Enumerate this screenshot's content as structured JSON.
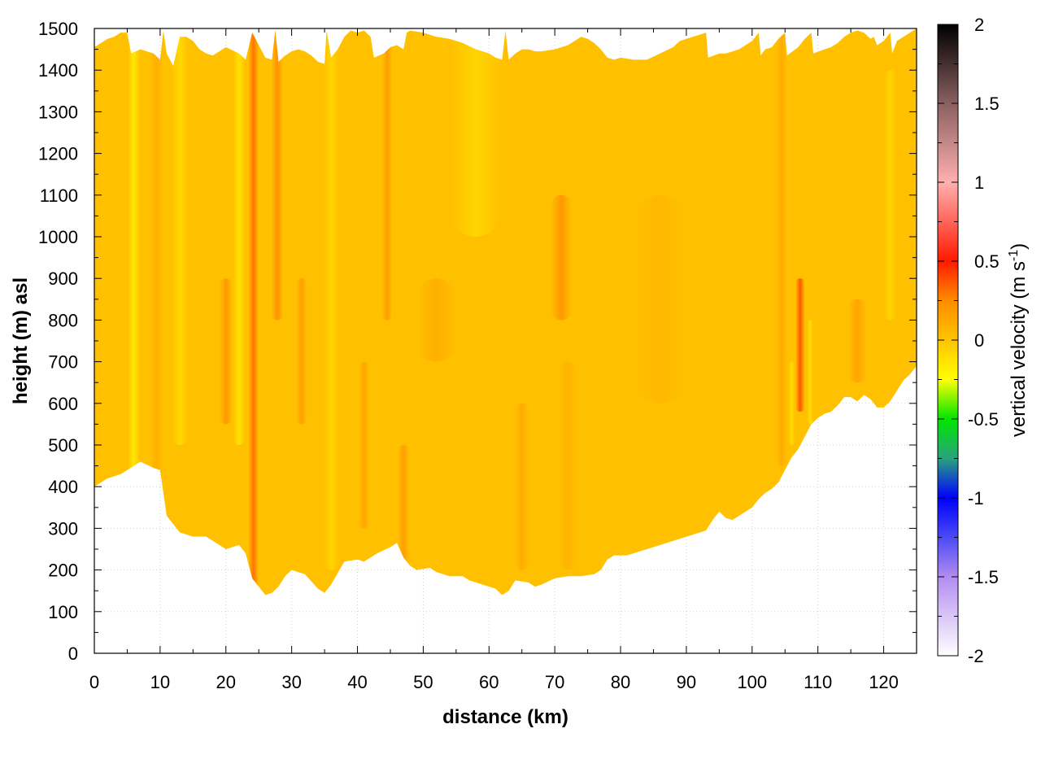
{
  "chart_data": {
    "type": "heatmap",
    "xlabel": "distance (km)",
    "ylabel": "height (m) asl",
    "xlim": [
      0,
      125
    ],
    "ylim": [
      0,
      1500
    ],
    "xticks": [
      "0",
      "10",
      "20",
      "30",
      "40",
      "50",
      "60",
      "70",
      "80",
      "90",
      "100",
      "110",
      "120"
    ],
    "yticks": [
      "0",
      "100",
      "200",
      "300",
      "400",
      "500",
      "600",
      "700",
      "800",
      "900",
      "1000",
      "1100",
      "1200",
      "1300",
      "1400",
      "1500"
    ],
    "grid": true,
    "colorbar": {
      "label_main": "vertical velocity (m s",
      "label_sup": "-1",
      "label_end": ")",
      "range": [
        -2,
        2
      ],
      "ticks": [
        "-2",
        "-1.5",
        "-1",
        "-0.5",
        "0",
        "0.5",
        "1",
        "1.5",
        "2"
      ],
      "palette": [
        {
          "v": -2.0,
          "color": "#ffffff"
        },
        {
          "v": -1.5,
          "color": "#b28cf0"
        },
        {
          "v": -1.25,
          "color": "#4a4af5"
        },
        {
          "v": -1.0,
          "color": "#0000ff"
        },
        {
          "v": -0.75,
          "color": "#2aa27e"
        },
        {
          "v": -0.5,
          "color": "#00e600"
        },
        {
          "v": -0.25,
          "color": "#ffff00"
        },
        {
          "v": 0.0,
          "color": "#ffc400"
        },
        {
          "v": 0.25,
          "color": "#ff8c00"
        },
        {
          "v": 0.5,
          "color": "#ff1a00"
        },
        {
          "v": 1.0,
          "color": "#ffb0b0"
        },
        {
          "v": 1.5,
          "color": "#8a6060"
        },
        {
          "v": 2.0,
          "color": "#000000"
        }
      ]
    },
    "base_value": 0.02,
    "bottom_boundary": [
      [
        0,
        400
      ],
      [
        2,
        420
      ],
      [
        4,
        430
      ],
      [
        5,
        440
      ],
      [
        7,
        460
      ],
      [
        9,
        445
      ],
      [
        10,
        440
      ],
      [
        11,
        330
      ],
      [
        13,
        290
      ],
      [
        15,
        280
      ],
      [
        17,
        280
      ],
      [
        19,
        260
      ],
      [
        20,
        250
      ],
      [
        22,
        260
      ],
      [
        23,
        240
      ],
      [
        24,
        180
      ],
      [
        25,
        160
      ],
      [
        26,
        140
      ],
      [
        27,
        145
      ],
      [
        28,
        160
      ],
      [
        29,
        185
      ],
      [
        30,
        200
      ],
      [
        32,
        190
      ],
      [
        34,
        155
      ],
      [
        35,
        145
      ],
      [
        36,
        165
      ],
      [
        38,
        220
      ],
      [
        40,
        225
      ],
      [
        41,
        220
      ],
      [
        43,
        240
      ],
      [
        45,
        255
      ],
      [
        46,
        265
      ],
      [
        47,
        230
      ],
      [
        48,
        210
      ],
      [
        49,
        200
      ],
      [
        51,
        205
      ],
      [
        52,
        195
      ],
      [
        54,
        185
      ],
      [
        56,
        185
      ],
      [
        57,
        175
      ],
      [
        59,
        165
      ],
      [
        61,
        155
      ],
      [
        62,
        140
      ],
      [
        63,
        150
      ],
      [
        64,
        175
      ],
      [
        66,
        170
      ],
      [
        67,
        160
      ],
      [
        68,
        165
      ],
      [
        70,
        180
      ],
      [
        72,
        185
      ],
      [
        74,
        185
      ],
      [
        76,
        190
      ],
      [
        77,
        200
      ],
      [
        78,
        225
      ],
      [
        79,
        235
      ],
      [
        81,
        235
      ],
      [
        83,
        245
      ],
      [
        85,
        255
      ],
      [
        87,
        265
      ],
      [
        89,
        275
      ],
      [
        91,
        285
      ],
      [
        93,
        295
      ],
      [
        94,
        320
      ],
      [
        95,
        340
      ],
      [
        96,
        325
      ],
      [
        97,
        320
      ],
      [
        98,
        330
      ],
      [
        100,
        350
      ],
      [
        101,
        370
      ],
      [
        102,
        385
      ],
      [
        103,
        395
      ],
      [
        104,
        410
      ],
      [
        105,
        440
      ],
      [
        106,
        470
      ],
      [
        107,
        490
      ],
      [
        108,
        520
      ],
      [
        109,
        550
      ],
      [
        110,
        565
      ],
      [
        111,
        575
      ],
      [
        112,
        580
      ],
      [
        113,
        595
      ],
      [
        114,
        615
      ],
      [
        115,
        615
      ],
      [
        116,
        605
      ],
      [
        117,
        620
      ],
      [
        118,
        610
      ],
      [
        119,
        590
      ],
      [
        120,
        590
      ],
      [
        121,
        605
      ],
      [
        122,
        630
      ],
      [
        123,
        655
      ],
      [
        124,
        670
      ],
      [
        125,
        690
      ]
    ],
    "top_boundary": [
      [
        0,
        1455
      ],
      [
        1,
        1465
      ],
      [
        2,
        1475
      ],
      [
        3,
        1480
      ],
      [
        4,
        1490
      ],
      [
        5,
        1490
      ],
      [
        5.6,
        1440
      ],
      [
        7,
        1450
      ],
      [
        8,
        1445
      ],
      [
        9,
        1440
      ],
      [
        10,
        1425
      ],
      [
        10.5,
        1495
      ],
      [
        11,
        1440
      ],
      [
        12,
        1410
      ],
      [
        13,
        1480
      ],
      [
        14,
        1480
      ],
      [
        15,
        1470
      ],
      [
        16,
        1450
      ],
      [
        17,
        1440
      ],
      [
        18,
        1435
      ],
      [
        19,
        1445
      ],
      [
        20,
        1455
      ],
      [
        22,
        1440
      ],
      [
        23,
        1425
      ],
      [
        24,
        1490
      ],
      [
        25,
        1460
      ],
      [
        26,
        1430
      ],
      [
        27,
        1425
      ],
      [
        27.5,
        1495
      ],
      [
        28,
        1420
      ],
      [
        29,
        1435
      ],
      [
        30,
        1445
      ],
      [
        31,
        1450
      ],
      [
        32,
        1445
      ],
      [
        33,
        1435
      ],
      [
        34,
        1420
      ],
      [
        35,
        1415
      ],
      [
        35.3,
        1495
      ],
      [
        36,
        1430
      ],
      [
        37,
        1450
      ],
      [
        38,
        1480
      ],
      [
        39,
        1495
      ],
      [
        40,
        1490
      ],
      [
        41,
        1495
      ],
      [
        42,
        1480
      ],
      [
        42.5,
        1430
      ],
      [
        44,
        1440
      ],
      [
        45,
        1455
      ],
      [
        46,
        1460
      ],
      [
        47,
        1450
      ],
      [
        47.5,
        1490
      ],
      [
        48,
        1495
      ],
      [
        50,
        1490
      ],
      [
        52,
        1480
      ],
      [
        54,
        1475
      ],
      [
        56,
        1465
      ],
      [
        58,
        1450
      ],
      [
        60,
        1440
      ],
      [
        61,
        1430
      ],
      [
        62,
        1425
      ],
      [
        62.5,
        1495
      ],
      [
        63,
        1425
      ],
      [
        64,
        1440
      ],
      [
        65,
        1450
      ],
      [
        66,
        1450
      ],
      [
        67,
        1445
      ],
      [
        68,
        1445
      ],
      [
        70,
        1450
      ],
      [
        72,
        1460
      ],
      [
        74,
        1480
      ],
      [
        75,
        1475
      ],
      [
        76,
        1465
      ],
      [
        77,
        1450
      ],
      [
        78,
        1430
      ],
      [
        79,
        1425
      ],
      [
        80,
        1430
      ],
      [
        82,
        1425
      ],
      [
        84,
        1425
      ],
      [
        86,
        1440
      ],
      [
        88,
        1455
      ],
      [
        89,
        1470
      ],
      [
        93,
        1490
      ],
      [
        93.3,
        1430
      ],
      [
        95,
        1440
      ],
      [
        96,
        1440
      ],
      [
        98,
        1450
      ],
      [
        100,
        1470
      ],
      [
        101,
        1490
      ],
      [
        101.3,
        1435
      ],
      [
        102,
        1450
      ],
      [
        103,
        1455
      ],
      [
        104,
        1475
      ],
      [
        105,
        1490
      ],
      [
        105.3,
        1435
      ],
      [
        107,
        1455
      ],
      [
        108,
        1475
      ],
      [
        109,
        1490
      ],
      [
        109.3,
        1440
      ],
      [
        111,
        1450
      ],
      [
        112,
        1455
      ],
      [
        113,
        1465
      ],
      [
        114,
        1480
      ],
      [
        115,
        1490
      ],
      [
        116,
        1495
      ],
      [
        117,
        1490
      ],
      [
        118,
        1475
      ],
      [
        118.5,
        1480
      ],
      [
        119,
        1460
      ],
      [
        120,
        1470
      ],
      [
        121,
        1490
      ],
      [
        121.3,
        1440
      ],
      [
        122,
        1470
      ],
      [
        123,
        1480
      ],
      [
        124,
        1490
      ],
      [
        125,
        1500
      ]
    ],
    "features": [
      {
        "x": 6.0,
        "hw": 0.9,
        "y0": 400,
        "y1": 1500,
        "v": -0.18
      },
      {
        "x": 9.5,
        "hw": 1.0,
        "y0": 300,
        "y1": 1500,
        "v": 0.1
      },
      {
        "x": 13.0,
        "hw": 1.3,
        "y0": 500,
        "y1": 1500,
        "v": -0.1
      },
      {
        "x": 20.0,
        "hw": 0.9,
        "y0": 550,
        "y1": 900,
        "v": 0.22
      },
      {
        "x": 22.0,
        "hw": 0.9,
        "y0": 500,
        "y1": 1500,
        "v": -0.15
      },
      {
        "x": 24.2,
        "hw": 0.8,
        "y0": 130,
        "y1": 1500,
        "v": 0.32
      },
      {
        "x": 27.8,
        "hw": 0.9,
        "y0": 800,
        "y1": 1500,
        "v": 0.25
      },
      {
        "x": 31.5,
        "hw": 0.8,
        "y0": 550,
        "y1": 900,
        "v": 0.18
      },
      {
        "x": 36.0,
        "hw": 1.2,
        "y0": 200,
        "y1": 1500,
        "v": -0.08
      },
      {
        "x": 41.0,
        "hw": 0.8,
        "y0": 300,
        "y1": 700,
        "v": 0.15
      },
      {
        "x": 44.5,
        "hw": 0.8,
        "y0": 800,
        "y1": 1500,
        "v": 0.2
      },
      {
        "x": 47.0,
        "hw": 0.9,
        "y0": 200,
        "y1": 500,
        "v": 0.18
      },
      {
        "x": 52.0,
        "hw": 3.0,
        "y0": 700,
        "y1": 900,
        "v": 0.1
      },
      {
        "x": 58.0,
        "hw": 4.0,
        "y0": 1000,
        "y1": 1500,
        "v": -0.08
      },
      {
        "x": 65.0,
        "hw": 1.0,
        "y0": 200,
        "y1": 600,
        "v": 0.12
      },
      {
        "x": 71.0,
        "hw": 1.6,
        "y0": 800,
        "y1": 1100,
        "v": 0.22
      },
      {
        "x": 72.0,
        "hw": 1.4,
        "y0": 200,
        "y1": 700,
        "v": 0.08
      },
      {
        "x": 86.0,
        "hw": 3.5,
        "y0": 600,
        "y1": 1100,
        "v": 0.06
      },
      {
        "x": 104.5,
        "hw": 0.8,
        "y0": 450,
        "y1": 1500,
        "v": 0.12
      },
      {
        "x": 106.0,
        "hw": 0.5,
        "y0": 500,
        "y1": 700,
        "v": -0.12
      },
      {
        "x": 107.3,
        "hw": 0.7,
        "y0": 580,
        "y1": 900,
        "v": 0.4
      },
      {
        "x": 108.8,
        "hw": 0.5,
        "y0": 550,
        "y1": 800,
        "v": -0.12
      },
      {
        "x": 116.0,
        "hw": 1.4,
        "y0": 650,
        "y1": 850,
        "v": 0.15
      },
      {
        "x": 121.0,
        "hw": 1.0,
        "y0": 800,
        "y1": 1400,
        "v": -0.08
      }
    ]
  }
}
